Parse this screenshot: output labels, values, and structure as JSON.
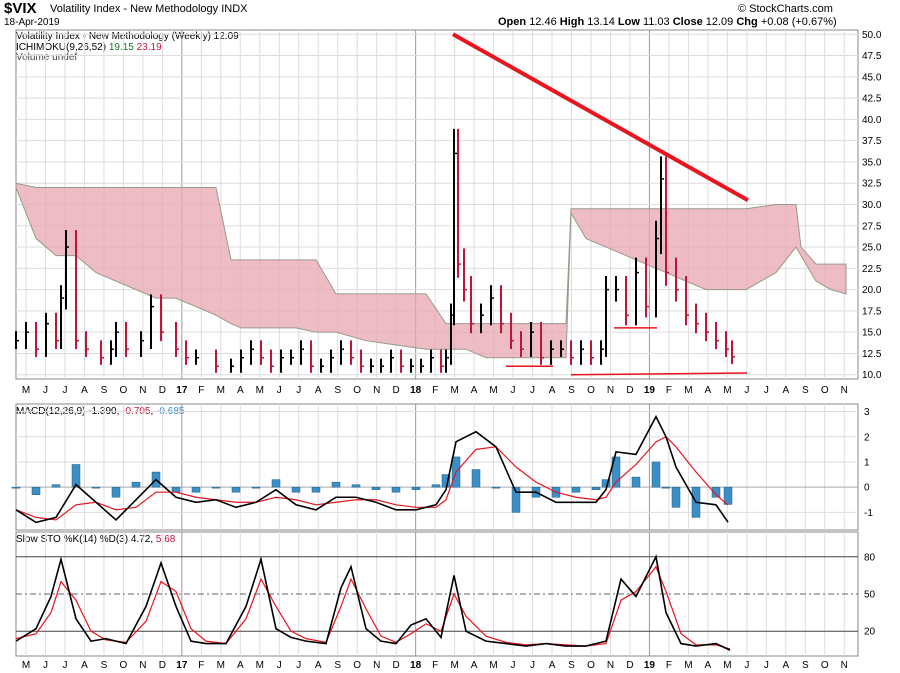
{
  "header": {
    "symbol": "$VIX",
    "name": "Volatility Index - New Methodology",
    "exchange": "INDX",
    "date": "18-Apr-2019",
    "open_label": "Open",
    "open": "12.46",
    "high_label": "High",
    "high": "13.14",
    "low_label": "Low",
    "low": "11.03",
    "close_label": "Close",
    "close": "12.09",
    "chg_label": "Chg",
    "chg": "+0.08 (+0.67%)",
    "credit": "© StockCharts.com"
  },
  "legends": {
    "price": "Volatility Index - New Methodology (Weekly) 12.09",
    "ichimoku_name": "ICHIMOKU(9,26,52)",
    "ichimoku_v1": "19.15",
    "ichimoku_v2": "23.19",
    "volume": "Volume undef",
    "macd_name": "MACD(12,26,9)",
    "macd_v1": "-1.390",
    "macd_v2": "-0.705",
    "macd_v3": "-0.685",
    "sto_name": "Slow STO %K(14) %D(3)",
    "sto_v1": "4.72",
    "sto_v2": "5.68"
  },
  "colors": {
    "up": "#000000",
    "down": "#c0143c",
    "cloud": "#e8a6b0",
    "cloud_green": "#a8d8a8",
    "trendline": "#e8141e",
    "macd_hist": "#3b8fc4",
    "signal": "#e8141e"
  },
  "chart_data": [
    {
      "type": "line",
      "panel": "price",
      "title": "Volatility Index - New Methodology (Weekly) 12.09",
      "x_tick_labels": [
        "M",
        "J",
        "J",
        "A",
        "S",
        "O",
        "N",
        "D",
        "17",
        "F",
        "M",
        "A",
        "M",
        "J",
        "J",
        "A",
        "S",
        "O",
        "N",
        "D",
        "18",
        "F",
        "M",
        "A",
        "M",
        "J",
        "J",
        "A",
        "S",
        "O",
        "N",
        "D",
        "19",
        "F",
        "M",
        "A",
        "M",
        "J",
        "J",
        "A",
        "S",
        "O",
        "N"
      ],
      "ylim": [
        9.5,
        50.5
      ],
      "y_ticks": [
        "10.0",
        "12.5",
        "15.0",
        "17.5",
        "20.0",
        "22.5",
        "25.0",
        "27.5",
        "30.0",
        "32.5",
        "35.0",
        "37.5",
        "40.0",
        "42.5",
        "45.0",
        "47.5",
        "50.0"
      ],
      "series": [
        {
          "name": "VIX weekly",
          "x": [
            0,
            10,
            20,
            30,
            40,
            45,
            50,
            60,
            70,
            85,
            95,
            100,
            110,
            125,
            135,
            145,
            160,
            170,
            180,
            200,
            215,
            225,
            235,
            245,
            255,
            265,
            275,
            285,
            295,
            305,
            315,
            325,
            335,
            345,
            355,
            365,
            375,
            385,
            395,
            405,
            415,
            425,
            430,
            435,
            438,
            442,
            448,
            455,
            465,
            475,
            485,
            495,
            505,
            515,
            525,
            535,
            545,
            555,
            565,
            575,
            585,
            590,
            600,
            610,
            620,
            630,
            640,
            645,
            650,
            660,
            670,
            680,
            690,
            700,
            710,
            716
          ],
          "y": [
            14,
            15,
            13,
            16,
            14,
            19,
            25,
            14,
            13,
            12,
            13,
            15,
            13,
            14,
            18,
            15,
            13,
            12,
            12,
            11,
            11,
            12,
            13,
            12,
            11,
            12,
            12,
            13,
            11,
            11,
            12,
            13,
            12,
            11,
            11,
            11,
            12,
            11,
            11,
            11,
            12,
            11,
            12,
            17,
            36,
            23,
            20,
            16,
            17,
            19,
            16,
            14,
            13,
            15,
            12,
            13,
            13,
            12,
            13,
            12,
            13,
            20,
            20,
            17,
            22,
            18,
            26,
            33,
            22,
            20,
            17,
            16,
            15,
            14,
            13,
            12.1
          ]
        },
        {
          "name": "Cloud top",
          "x": [
            0,
            20,
            40,
            60,
            80,
            100,
            120,
            140,
            160,
            180,
            200,
            215,
            225,
            250,
            280,
            300,
            320,
            350,
            380,
            410,
            430,
            450,
            470,
            490,
            510,
            530,
            550,
            555,
            570,
            590,
            610,
            630,
            650,
            670,
            690,
            710,
            730,
            760,
            780,
            785,
            800,
            815,
            830
          ],
          "y": [
            32.5,
            32,
            32,
            32,
            32,
            32,
            32,
            32,
            32,
            32,
            32,
            23.5,
            23.5,
            23.5,
            23.5,
            23.5,
            19.5,
            19.5,
            19.5,
            19.5,
            16,
            16,
            16,
            16,
            16,
            16,
            16,
            29.5,
            29.5,
            29.5,
            29.5,
            29.5,
            29.5,
            29.5,
            29.5,
            29.5,
            29.5,
            30,
            30,
            25,
            23,
            23,
            23
          ]
        },
        {
          "name": "Cloud bottom",
          "x": [
            0,
            20,
            40,
            60,
            80,
            100,
            120,
            140,
            160,
            180,
            200,
            215,
            225,
            250,
            280,
            300,
            320,
            350,
            380,
            410,
            430,
            450,
            470,
            490,
            510,
            530,
            550,
            555,
            570,
            590,
            610,
            630,
            650,
            670,
            690,
            710,
            730,
            760,
            780,
            785,
            800,
            815,
            830
          ],
          "y": [
            32,
            26,
            24,
            24,
            22,
            21,
            20,
            19,
            19,
            18,
            17,
            16,
            15.5,
            15.5,
            15.5,
            15,
            15,
            14,
            13.5,
            13,
            13,
            13,
            12,
            12,
            12,
            12,
            12,
            29,
            26,
            25,
            24,
            23,
            22,
            21,
            20,
            20,
            20,
            22,
            25,
            24,
            21,
            20,
            19.5
          ]
        }
      ],
      "annotations": [
        {
          "type": "trendline",
          "x": [
            437,
            732
          ],
          "y": [
            50,
            30.5
          ]
        },
        {
          "type": "support",
          "x": [
            490,
            537
          ],
          "y": [
            11,
            11
          ]
        },
        {
          "type": "support",
          "x": [
            555,
            731
          ],
          "y": [
            10,
            10.2
          ]
        },
        {
          "type": "support",
          "x": [
            598,
            641
          ],
          "y": [
            15.5,
            15.5
          ]
        }
      ]
    },
    {
      "type": "bar",
      "panel": "macd",
      "title": "MACD(12,26,9)",
      "ylim": [
        -1.7,
        3.3
      ],
      "y_ticks": [
        "-1",
        "0",
        "1",
        "2",
        "3"
      ],
      "series": [
        {
          "name": "MACD",
          "x": [
            0,
            20,
            40,
            60,
            80,
            100,
            120,
            140,
            160,
            180,
            200,
            220,
            240,
            260,
            280,
            300,
            320,
            340,
            360,
            380,
            400,
            420,
            430,
            440,
            460,
            480,
            500,
            520,
            540,
            560,
            580,
            590,
            600,
            620,
            640,
            650,
            660,
            680,
            700,
            712
          ],
          "y": [
            -0.9,
            -1.4,
            -1.2,
            0.1,
            -0.6,
            -1.3,
            -0.5,
            0.3,
            -0.4,
            -0.6,
            -0.5,
            -0.8,
            -0.6,
            -0.1,
            -0.7,
            -0.9,
            -0.4,
            -0.4,
            -0.6,
            -0.9,
            -0.9,
            -0.7,
            -0.1,
            1.8,
            2.2,
            1.6,
            -0.2,
            -0.2,
            -0.6,
            -0.6,
            -0.6,
            -0.1,
            1.4,
            1.3,
            2.8,
            2.0,
            0.8,
            -0.6,
            -0.7,
            -1.39
          ]
        },
        {
          "name": "Signal",
          "x": [
            0,
            20,
            40,
            60,
            80,
            100,
            120,
            140,
            160,
            180,
            200,
            220,
            240,
            260,
            280,
            300,
            320,
            340,
            360,
            380,
            400,
            420,
            430,
            440,
            460,
            480,
            500,
            520,
            540,
            560,
            580,
            590,
            600,
            620,
            640,
            650,
            660,
            680,
            700,
            712
          ],
          "y": [
            -0.9,
            -1.2,
            -1.3,
            -0.7,
            -0.6,
            -0.9,
            -0.8,
            -0.2,
            -0.2,
            -0.4,
            -0.5,
            -0.6,
            -0.6,
            -0.4,
            -0.5,
            -0.7,
            -0.6,
            -0.5,
            -0.5,
            -0.7,
            -0.8,
            -0.8,
            -0.5,
            0.6,
            1.5,
            1.6,
            0.8,
            0.2,
            -0.2,
            -0.4,
            -0.5,
            -0.4,
            0.2,
            0.9,
            1.8,
            2.0,
            1.6,
            0.6,
            -0.3,
            -0.705
          ]
        },
        {
          "name": "Histogram",
          "x": [
            0,
            20,
            40,
            60,
            80,
            100,
            120,
            140,
            160,
            180,
            200,
            220,
            240,
            260,
            280,
            300,
            320,
            340,
            360,
            380,
            400,
            420,
            430,
            440,
            460,
            480,
            500,
            520,
            540,
            560,
            580,
            590,
            600,
            620,
            640,
            650,
            660,
            680,
            700,
            712
          ],
          "y": [
            0,
            -0.3,
            0.1,
            0.9,
            0,
            -0.4,
            0.2,
            0.6,
            -0.2,
            -0.2,
            0,
            -0.2,
            0,
            0.3,
            -0.2,
            -0.2,
            0.2,
            0.1,
            -0.1,
            -0.2,
            -0.1,
            0.1,
            0.5,
            1.2,
            0.7,
            0,
            -1,
            -0.4,
            -0.4,
            -0.2,
            -0.1,
            0.3,
            1.2,
            0.4,
            1,
            0,
            -0.8,
            -1.2,
            -0.4,
            -0.685
          ]
        }
      ]
    },
    {
      "type": "line",
      "panel": "stochastic",
      "title": "Slow STO %K(14) %D(3)",
      "ylim": [
        0,
        100
      ],
      "y_ticks": [
        "20",
        "50",
        "80"
      ],
      "series": [
        {
          "name": "%K",
          "x": [
            0,
            20,
            35,
            45,
            60,
            75,
            90,
            110,
            130,
            145,
            160,
            175,
            190,
            210,
            230,
            245,
            260,
            275,
            290,
            310,
            325,
            335,
            350,
            365,
            380,
            395,
            410,
            425,
            438,
            450,
            470,
            490,
            510,
            530,
            550,
            570,
            590,
            605,
            620,
            640,
            650,
            665,
            680,
            700,
            714
          ],
          "y": [
            12,
            22,
            48,
            78,
            30,
            12,
            14,
            10,
            40,
            75,
            40,
            12,
            10,
            10,
            40,
            78,
            22,
            15,
            12,
            10,
            55,
            72,
            22,
            12,
            10,
            25,
            30,
            15,
            65,
            20,
            12,
            10,
            8,
            10,
            8,
            8,
            12,
            62,
            48,
            80,
            35,
            10,
            8,
            10,
            4.72
          ]
        },
        {
          "name": "%D",
          "x": [
            0,
            20,
            35,
            45,
            60,
            75,
            90,
            110,
            130,
            145,
            160,
            175,
            190,
            210,
            230,
            245,
            260,
            275,
            290,
            310,
            325,
            335,
            350,
            365,
            380,
            395,
            410,
            425,
            438,
            450,
            470,
            490,
            510,
            530,
            550,
            570,
            590,
            605,
            620,
            640,
            650,
            665,
            680,
            700,
            714
          ],
          "y": [
            14,
            18,
            35,
            60,
            45,
            20,
            13,
            11,
            28,
            60,
            52,
            22,
            12,
            10,
            30,
            62,
            40,
            20,
            14,
            11,
            40,
            62,
            38,
            16,
            11,
            18,
            26,
            20,
            50,
            32,
            16,
            11,
            9,
            10,
            9,
            8,
            10,
            45,
            52,
            72,
            52,
            18,
            9,
            9,
            5.68
          ]
        }
      ]
    }
  ]
}
